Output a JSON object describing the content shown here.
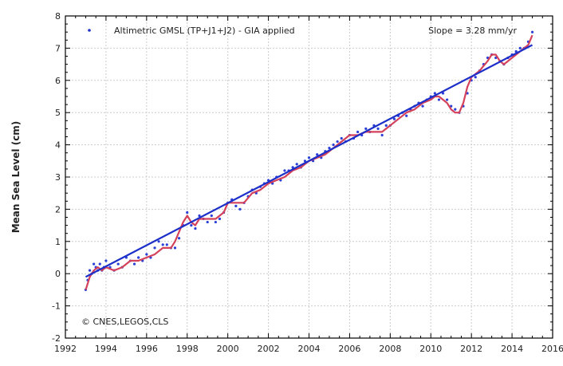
{
  "chart_data": {
    "type": "line",
    "title": "",
    "xlabel": "",
    "ylabel": "Mean Sea Level (cm)",
    "xlim": [
      1992,
      2016
    ],
    "ylim": [
      -2,
      8
    ],
    "xticks": [
      1992,
      1994,
      1996,
      1998,
      2000,
      2002,
      2004,
      2006,
      2008,
      2010,
      2012,
      2014,
      2016
    ],
    "yticks": [
      -2,
      -1,
      0,
      1,
      2,
      3,
      4,
      5,
      6,
      7,
      8
    ],
    "xtick_labels": [
      "1992",
      "1994",
      "1996",
      "1998",
      "2000",
      "2002",
      "2004",
      "2006",
      "2008",
      "2010",
      "2012",
      "2014",
      "2016"
    ],
    "ytick_labels": [
      "-2",
      "-1",
      "0",
      "1",
      "2",
      "3",
      "4",
      "5",
      "6",
      "7",
      "8"
    ],
    "grid": true,
    "legend": {
      "placement": "top-left",
      "entry": "Altimetric GMSL (TP+J1+J2) - GIA applied",
      "marker_color": "#2233cc"
    },
    "slope_text": "Slope = 3.28 mm/yr",
    "credit_text": "© CNES,LEGOS,CLS",
    "colors": {
      "points": "#2a3fd8",
      "smoothed": "#d4415a",
      "trend": "#1c2fc8",
      "grid": "#cccccc",
      "axis": "#000000"
    },
    "series": [
      {
        "type": "scatter",
        "x": [
          1993.0,
          1993.1,
          1993.2,
          1993.3,
          1993.4,
          1993.5,
          1993.6,
          1993.7,
          1993.8,
          1993.9,
          1994.0,
          1994.2,
          1994.4,
          1994.6,
          1994.8,
          1995.0,
          1995.2,
          1995.4,
          1995.6,
          1995.8,
          1996.0,
          1996.2,
          1996.4,
          1996.6,
          1996.8,
          1997.0,
          1997.2,
          1997.4,
          1997.6,
          1997.8,
          1998.0,
          1998.2,
          1998.4,
          1998.6,
          1998.8,
          1999.0,
          1999.2,
          1999.4,
          1999.6,
          1999.8,
          2000.0,
          2000.2,
          2000.4,
          2000.6,
          2000.8,
          2001.0,
          2001.2,
          2001.4,
          2001.6,
          2001.8,
          2002.0,
          2002.2,
          2002.4,
          2002.6,
          2002.8,
          2003.0,
          2003.2,
          2003.4,
          2003.6,
          2003.8,
          2004.0,
          2004.2,
          2004.4,
          2004.6,
          2004.8,
          2005.0,
          2005.2,
          2005.4,
          2005.6,
          2005.8,
          2006.0,
          2006.2,
          2006.4,
          2006.6,
          2006.8,
          2007.0,
          2007.2,
          2007.4,
          2007.6,
          2007.8,
          2008.0,
          2008.2,
          2008.4,
          2008.6,
          2008.8,
          2009.0,
          2009.2,
          2009.4,
          2009.6,
          2009.8,
          2010.0,
          2010.2,
          2010.4,
          2010.6,
          2010.8,
          2011.0,
          2011.2,
          2011.4,
          2011.6,
          2011.8,
          2012.0,
          2012.2,
          2012.4,
          2012.6,
          2012.8,
          2013.0,
          2013.2,
          2013.4,
          2013.6,
          2013.8,
          2014.0,
          2014.2,
          2014.4,
          2014.6,
          2014.8,
          2015.0
        ],
        "y": [
          -0.5,
          -0.2,
          0.1,
          0.0,
          0.3,
          0.2,
          0.1,
          0.3,
          0.1,
          0.2,
          0.4,
          0.2,
          0.1,
          0.3,
          0.2,
          0.5,
          0.4,
          0.3,
          0.5,
          0.4,
          0.6,
          0.5,
          0.8,
          1.0,
          0.9,
          0.9,
          0.8,
          0.8,
          1.1,
          1.5,
          1.9,
          1.5,
          1.4,
          1.8,
          1.7,
          1.6,
          1.8,
          1.6,
          1.7,
          1.9,
          2.2,
          2.3,
          2.1,
          2.0,
          2.2,
          2.4,
          2.6,
          2.5,
          2.7,
          2.8,
          2.9,
          2.8,
          3.0,
          2.9,
          3.2,
          3.2,
          3.3,
          3.4,
          3.3,
          3.5,
          3.6,
          3.5,
          3.7,
          3.6,
          3.8,
          3.9,
          4.0,
          4.1,
          4.2,
          4.1,
          4.3,
          4.2,
          4.4,
          4.3,
          4.5,
          4.4,
          4.6,
          4.5,
          4.3,
          4.6,
          4.6,
          4.8,
          4.9,
          5.0,
          4.9,
          5.1,
          5.2,
          5.3,
          5.2,
          5.4,
          5.5,
          5.6,
          5.4,
          5.6,
          5.4,
          5.2,
          5.1,
          5.0,
          5.2,
          5.6,
          6.0,
          6.1,
          6.3,
          6.5,
          6.7,
          6.8,
          6.7,
          6.6,
          6.5,
          6.7,
          6.8,
          6.9,
          7.0,
          7.0,
          7.2,
          7.5
        ]
      },
      {
        "type": "line",
        "x": [
          1993.0,
          1993.2,
          1993.4,
          1993.6,
          1993.8,
          1994.0,
          1994.4,
          1994.8,
          1995.2,
          1995.6,
          1996.0,
          1996.4,
          1996.8,
          1997.0,
          1997.2,
          1997.4,
          1997.6,
          1997.8,
          1998.0,
          1998.2,
          1998.4,
          1998.6,
          1999.0,
          1999.4,
          1999.8,
          2000.0,
          2000.4,
          2000.8,
          2001.2,
          2001.6,
          2002.0,
          2002.4,
          2002.8,
          2003.2,
          2003.6,
          2004.0,
          2004.4,
          2004.8,
          2005.2,
          2005.6,
          2006.0,
          2006.4,
          2006.8,
          2007.2,
          2007.6,
          2008.0,
          2008.4,
          2008.8,
          2009.2,
          2009.6,
          2010.0,
          2010.2,
          2010.4,
          2010.6,
          2010.8,
          2011.0,
          2011.2,
          2011.4,
          2011.6,
          2011.8,
          2012.0,
          2012.4,
          2012.8,
          2013.0,
          2013.2,
          2013.4,
          2013.6,
          2013.8,
          2014.0,
          2014.4,
          2014.8,
          2015.0
        ],
        "y": [
          -0.5,
          -0.1,
          0.1,
          0.2,
          0.1,
          0.2,
          0.1,
          0.2,
          0.4,
          0.4,
          0.5,
          0.6,
          0.8,
          0.8,
          0.8,
          1.0,
          1.3,
          1.6,
          1.8,
          1.6,
          1.5,
          1.7,
          1.7,
          1.7,
          1.9,
          2.2,
          2.2,
          2.2,
          2.5,
          2.6,
          2.8,
          2.9,
          3.0,
          3.2,
          3.3,
          3.5,
          3.6,
          3.7,
          3.9,
          4.1,
          4.3,
          4.3,
          4.4,
          4.4,
          4.4,
          4.6,
          4.8,
          5.0,
          5.1,
          5.3,
          5.4,
          5.5,
          5.5,
          5.4,
          5.3,
          5.1,
          5.0,
          5.0,
          5.3,
          5.8,
          6.1,
          6.3,
          6.6,
          6.8,
          6.8,
          6.6,
          6.5,
          6.6,
          6.7,
          6.9,
          7.1,
          7.4
        ]
      },
      {
        "type": "line",
        "x": [
          1993.0,
          2015.0
        ],
        "y": [
          -0.1,
          7.1
        ]
      }
    ]
  }
}
